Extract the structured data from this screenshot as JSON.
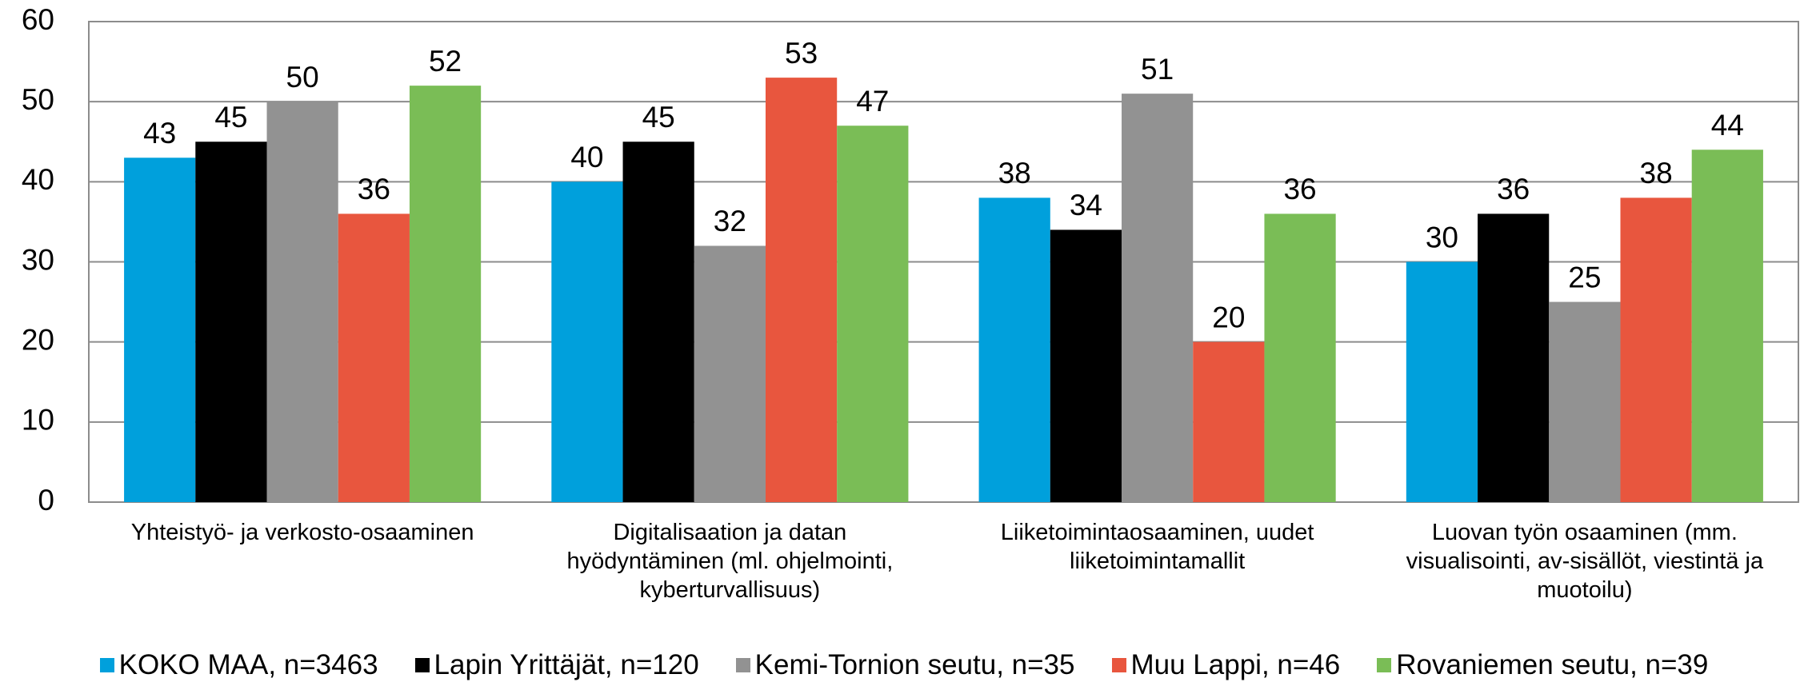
{
  "chart_data": {
    "type": "bar",
    "categories": [
      "Yhteistyö- ja verkosto-osaaminen",
      "Digitalisaation ja datan hyödyntäminen (ml. ohjelmointi, kyberturvallisuus)",
      "Liiketoimintaosaaminen, uudet liiketoimintamallit",
      "Luovan työn osaaminen (mm. visualisointi, av-sisällöt, viestintä ja muotoilu)"
    ],
    "series": [
      {
        "name": "KOKO MAA, n=3463",
        "color": "#00a0dc",
        "values": [
          43,
          40,
          38,
          30
        ]
      },
      {
        "name": "Lapin Yrittäjät, n=120",
        "color": "#000000",
        "values": [
          45,
          45,
          34,
          36
        ]
      },
      {
        "name": "Kemi-Tornion seutu, n=35",
        "color": "#929292",
        "values": [
          50,
          32,
          51,
          25
        ]
      },
      {
        "name": "Muu Lappi, n=46",
        "color": "#e8563e",
        "values": [
          36,
          53,
          20,
          38
        ]
      },
      {
        "name": "Rovaniemen seutu, n=39",
        "color": "#7abd56",
        "values": [
          52,
          47,
          36,
          44
        ]
      }
    ],
    "ylim": [
      0,
      60
    ],
    "yticks": [
      0,
      10,
      20,
      30,
      40,
      50,
      60
    ],
    "grid": true,
    "legend": "bottom"
  }
}
